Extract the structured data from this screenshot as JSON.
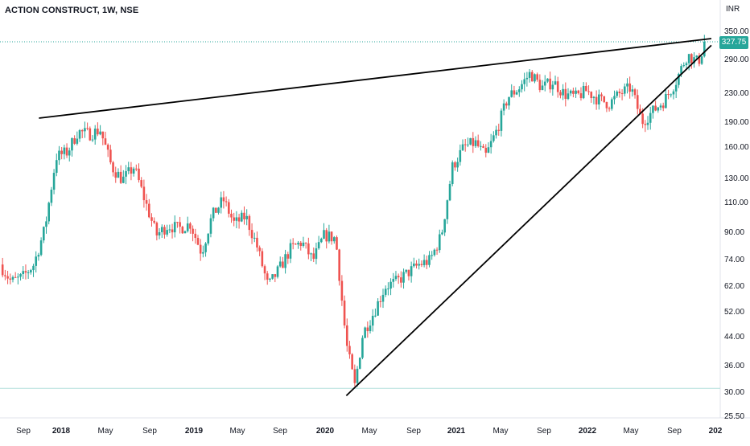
{
  "header": {
    "title": "ACTION CONSTRUCT, 1W, NSE",
    "currency": "INR"
  },
  "colors": {
    "up": "#26a69a",
    "down": "#ef5350",
    "trendline": "#000000",
    "price_line": "#26a69a",
    "level_line": "#b2dfdb"
  },
  "last_price_label": "327.75",
  "chart_data": {
    "type": "candlestick",
    "title": "ACTION CONSTRUCT, 1W, NSE",
    "y_unit": "INR",
    "y_scale": "log",
    "ylim": [
      24.5,
      420
    ],
    "y_ticks": [
      "350.00",
      "290.00",
      "230.00",
      "190.00",
      "160.00",
      "130.00",
      "110.00",
      "90.00",
      "74.00",
      "62.00",
      "52.00",
      "44.00",
      "36.00",
      "30.00",
      "25.50"
    ],
    "x_ticks": [
      {
        "label": "Sep",
        "bold": false
      },
      {
        "label": "2018",
        "bold": true
      },
      {
        "label": "May",
        "bold": false
      },
      {
        "label": "Sep",
        "bold": false
      },
      {
        "label": "2019",
        "bold": true
      },
      {
        "label": "May",
        "bold": false
      },
      {
        "label": "Sep",
        "bold": false
      },
      {
        "label": "2020",
        "bold": true
      },
      {
        "label": "May",
        "bold": false
      },
      {
        "label": "Sep",
        "bold": false
      },
      {
        "label": "2021",
        "bold": true
      },
      {
        "label": "May",
        "bold": false
      },
      {
        "label": "Sep",
        "bold": false
      },
      {
        "label": "2022",
        "bold": true
      },
      {
        "label": "May",
        "bold": false
      },
      {
        "label": "Sep",
        "bold": false
      },
      {
        "label": "202",
        "bold": true
      }
    ],
    "close_path": [
      [
        "2017-08-01",
        72
      ],
      [
        "2017-09-01",
        64
      ],
      [
        "2017-10-01",
        66
      ],
      [
        "2017-11-01",
        72
      ],
      [
        "2017-12-01",
        92
      ],
      [
        "2018-01-01",
        150
      ],
      [
        "2018-02-01",
        155
      ],
      [
        "2018-03-01",
        178
      ],
      [
        "2018-04-01",
        175
      ],
      [
        "2018-05-01",
        180
      ],
      [
        "2018-06-01",
        140
      ],
      [
        "2018-07-01",
        128
      ],
      [
        "2018-08-01",
        140
      ],
      [
        "2018-09-01",
        110
      ],
      [
        "2018-10-01",
        88
      ],
      [
        "2018-11-01",
        94
      ],
      [
        "2018-12-01",
        92
      ],
      [
        "2019-01-01",
        95
      ],
      [
        "2019-02-01",
        78
      ],
      [
        "2019-03-01",
        100
      ],
      [
        "2019-04-01",
        112
      ],
      [
        "2019-05-01",
        95
      ],
      [
        "2019-06-01",
        100
      ],
      [
        "2019-07-01",
        82
      ],
      [
        "2019-08-01",
        62
      ],
      [
        "2019-09-01",
        70
      ],
      [
        "2019-10-01",
        80
      ],
      [
        "2019-11-01",
        84
      ],
      [
        "2019-12-01",
        74
      ],
      [
        "2020-01-01",
        88
      ],
      [
        "2020-02-01",
        86
      ],
      [
        "2020-03-01",
        42
      ],
      [
        "2020-03-24",
        31.5
      ],
      [
        "2020-04-15",
        45
      ],
      [
        "2020-05-15",
        52
      ],
      [
        "2020-06-15",
        62
      ],
      [
        "2020-07-15",
        64
      ],
      [
        "2020-08-15",
        68
      ],
      [
        "2020-09-15",
        72
      ],
      [
        "2020-10-15",
        74
      ],
      [
        "2020-11-15",
        88
      ],
      [
        "2020-12-15",
        140
      ],
      [
        "2021-01-15",
        160
      ],
      [
        "2021-02-15",
        165
      ],
      [
        "2021-03-15",
        150
      ],
      [
        "2021-04-15",
        180
      ],
      [
        "2021-05-15",
        225
      ],
      [
        "2021-06-15",
        240
      ],
      [
        "2021-07-15",
        265
      ],
      [
        "2021-08-15",
        240
      ],
      [
        "2021-09-15",
        250
      ],
      [
        "2021-10-15",
        230
      ],
      [
        "2021-11-15",
        225
      ],
      [
        "2021-12-15",
        235
      ],
      [
        "2022-01-15",
        222
      ],
      [
        "2022-02-15",
        215
      ],
      [
        "2022-03-15",
        230
      ],
      [
        "2022-04-15",
        240
      ],
      [
        "2022-05-15",
        190
      ],
      [
        "2022-06-15",
        205
      ],
      [
        "2022-07-15",
        220
      ],
      [
        "2022-08-15",
        250
      ],
      [
        "2022-09-15",
        300
      ],
      [
        "2022-10-15",
        285
      ],
      [
        "2022-10-25",
        305
      ],
      [
        "2022-11-01",
        327.75
      ]
    ],
    "annotations": [
      {
        "type": "trendline",
        "from": [
          "2017-11-15",
          195
        ],
        "to": [
          "2022-11-20",
          335
        ]
      },
      {
        "type": "trendline",
        "from": [
          "2020-03-01",
          29.5
        ],
        "to": [
          "2022-11-20",
          320
        ]
      },
      {
        "type": "horizontal",
        "value": 31
      }
    ]
  }
}
